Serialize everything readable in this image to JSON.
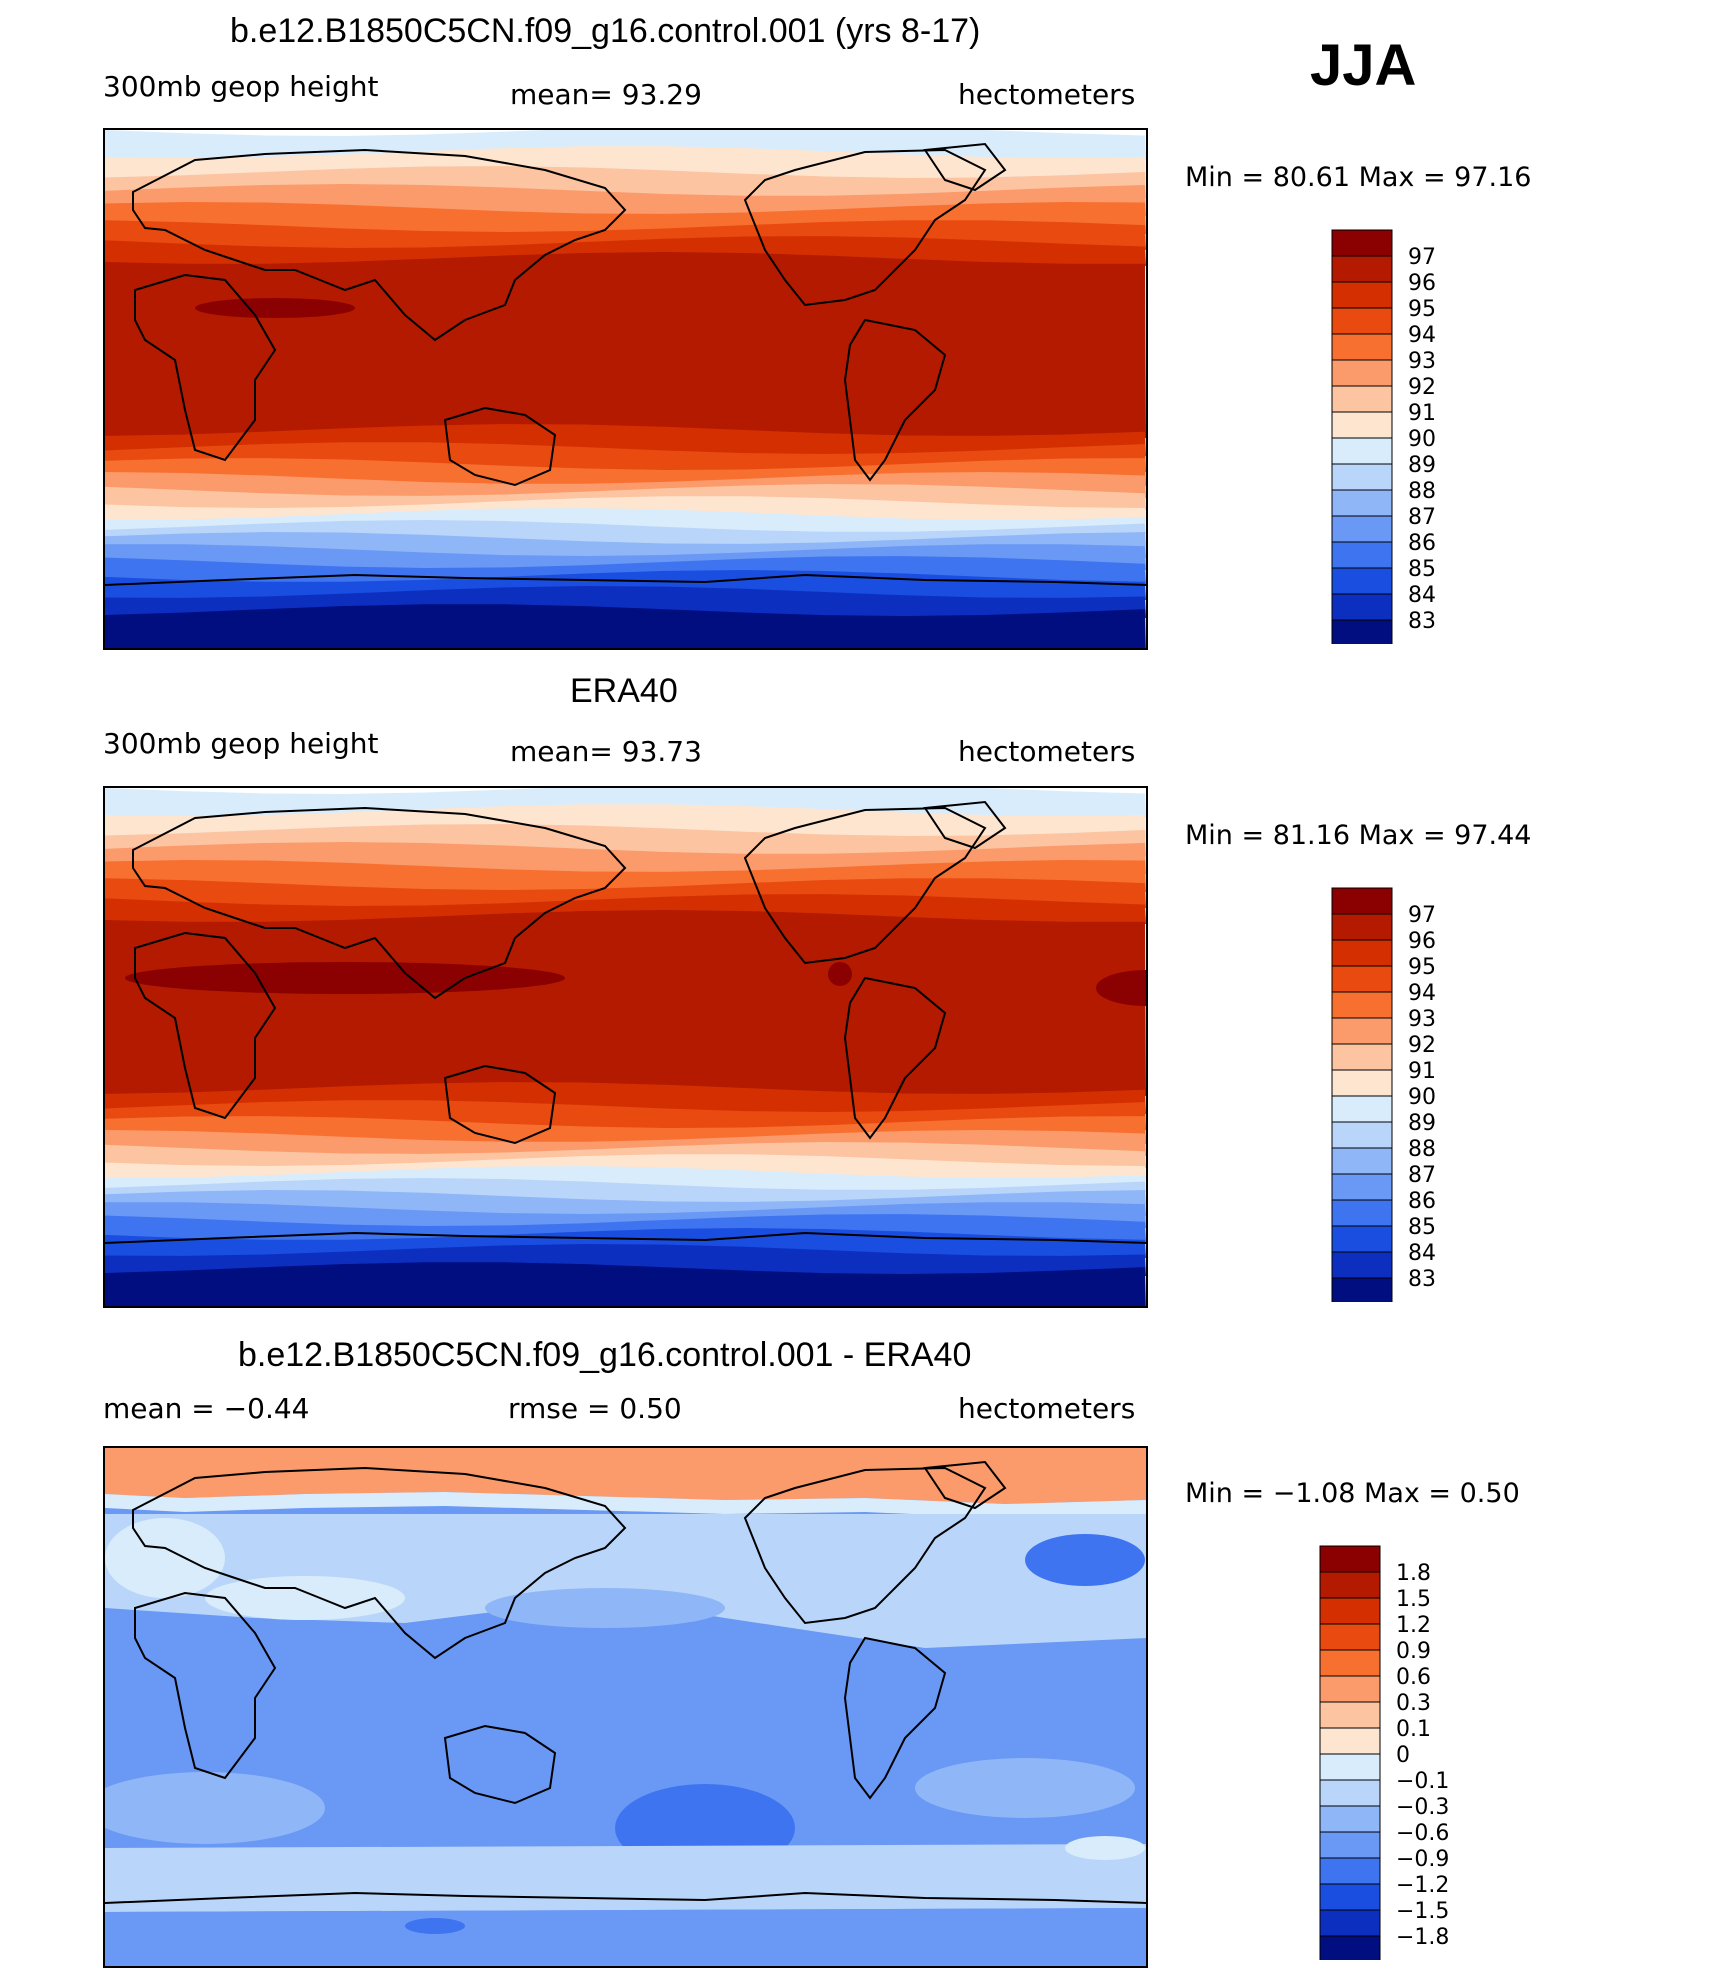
{
  "season": "JJA",
  "panels": [
    {
      "title": "b.e12.B1850C5CN.f09_g16.control.001 (yrs 8-17)",
      "left_label": "300mb geop height",
      "center_label": "mean=  93.29",
      "right_label": "hectometers",
      "minmax": "Min =   80.61 Max =   97.16"
    },
    {
      "title": "ERA40",
      "left_label": "300mb geop height",
      "center_label": "mean=  93.73",
      "right_label": "hectometers",
      "minmax": "Min =   81.16 Max =   97.44"
    },
    {
      "title": "b.e12.B1850C5CN.f09_g16.control.001 - ERA40",
      "left_label": "mean =   −0.44",
      "center_label": "rmse =    0.50",
      "right_label": "hectometers",
      "minmax": "Min =   −1.08 Max =    0.50"
    }
  ],
  "colorbars": {
    "height": {
      "labels": [
        "97",
        "96",
        "95",
        "94",
        "93",
        "92",
        "91",
        "90",
        "89",
        "88",
        "87",
        "86",
        "85",
        "84",
        "83"
      ],
      "colors": [
        "#8b0000",
        "#b31a00",
        "#d42f00",
        "#e84a10",
        "#f77030",
        "#fb9a6a",
        "#fcc4a0",
        "#fde5d0",
        "#d9ecfb",
        "#b9d6fa",
        "#8fb6f7",
        "#6a98f5",
        "#3f74f0",
        "#1a4ee0",
        "#0d2fc0",
        "#000e80"
      ]
    },
    "diff": {
      "labels": [
        "1.8",
        "1.5",
        "1.2",
        "0.9",
        "0.6",
        "0.3",
        "0.1",
        "0",
        "−0.1",
        "−0.3",
        "−0.6",
        "−0.9",
        "−1.2",
        "−1.5",
        "−1.8"
      ],
      "colors": [
        "#8b0000",
        "#b31a00",
        "#d42f00",
        "#e84a10",
        "#f77030",
        "#fb9a6a",
        "#fcc4a0",
        "#fde5d0",
        "#d9ecfb",
        "#b9d6fa",
        "#8fb6f7",
        "#6a98f5",
        "#3f74f0",
        "#1a4ee0",
        "#0d2fc0",
        "#000e80"
      ]
    }
  },
  "chart_data": [
    {
      "type": "heatmap",
      "title": "b.e12.B1850C5CN.f09_g16.control.001 (yrs 8-17)",
      "variable": "300mb geop height",
      "units": "hectometers",
      "mean": 93.29,
      "min": 80.61,
      "max": 97.16,
      "contour_levels": [
        83,
        84,
        85,
        86,
        87,
        88,
        89,
        90,
        91,
        92,
        93,
        94,
        95,
        96,
        97
      ],
      "zonal_profile": [
        {
          "lat": 90,
          "value": 89.5
        },
        {
          "lat": 75,
          "value": 91.0
        },
        {
          "lat": 60,
          "value": 92.5
        },
        {
          "lat": 45,
          "value": 94.5
        },
        {
          "lat": 30,
          "value": 96.0
        },
        {
          "lat": 15,
          "value": 96.5
        },
        {
          "lat": 0,
          "value": 96.5
        },
        {
          "lat": -15,
          "value": 96.3
        },
        {
          "lat": -25,
          "value": 94.5
        },
        {
          "lat": -35,
          "value": 91.5
        },
        {
          "lat": -45,
          "value": 88.0
        },
        {
          "lat": -55,
          "value": 85.5
        },
        {
          "lat": -65,
          "value": 83.5
        },
        {
          "lat": -75,
          "value": 82.0
        },
        {
          "lat": -90,
          "value": 81.0
        }
      ]
    },
    {
      "type": "heatmap",
      "title": "ERA40",
      "variable": "300mb geop height",
      "units": "hectometers",
      "mean": 93.73,
      "min": 81.16,
      "max": 97.44,
      "contour_levels": [
        83,
        84,
        85,
        86,
        87,
        88,
        89,
        90,
        91,
        92,
        93,
        94,
        95,
        96,
        97
      ],
      "zonal_profile": [
        {
          "lat": 90,
          "value": 89.5
        },
        {
          "lat": 75,
          "value": 91.0
        },
        {
          "lat": 60,
          "value": 93.0
        },
        {
          "lat": 45,
          "value": 95.0
        },
        {
          "lat": 30,
          "value": 96.8
        },
        {
          "lat": 15,
          "value": 96.5
        },
        {
          "lat": 0,
          "value": 96.5
        },
        {
          "lat": -15,
          "value": 96.3
        },
        {
          "lat": -25,
          "value": 94.5
        },
        {
          "lat": -35,
          "value": 91.5
        },
        {
          "lat": -45,
          "value": 88.0
        },
        {
          "lat": -55,
          "value": 85.5
        },
        {
          "lat": -65,
          "value": 83.5
        },
        {
          "lat": -75,
          "value": 82.0
        },
        {
          "lat": -90,
          "value": 81.5
        }
      ]
    },
    {
      "type": "heatmap",
      "title": "b.e12.B1850C5CN.f09_g16.control.001 - ERA40",
      "units": "hectometers",
      "mean": -0.44,
      "rmse": 0.5,
      "min": -1.08,
      "max": 0.5,
      "contour_levels": [
        -1.8,
        -1.5,
        -1.2,
        -0.9,
        -0.6,
        -0.3,
        -0.1,
        0,
        0.1,
        0.3,
        0.6,
        0.9,
        1.2,
        1.5,
        1.8
      ],
      "zonal_profile": [
        {
          "lat": 90,
          "value": 0.3
        },
        {
          "lat": 75,
          "value": 0.2
        },
        {
          "lat": 60,
          "value": -0.2
        },
        {
          "lat": 45,
          "value": -0.3
        },
        {
          "lat": 30,
          "value": -0.4
        },
        {
          "lat": 15,
          "value": -0.5
        },
        {
          "lat": 0,
          "value": -0.5
        },
        {
          "lat": -15,
          "value": -0.5
        },
        {
          "lat": -30,
          "value": -0.6
        },
        {
          "lat": -45,
          "value": -0.5
        },
        {
          "lat": -60,
          "value": -0.5
        },
        {
          "lat": -75,
          "value": -0.4
        },
        {
          "lat": -90,
          "value": -0.3
        }
      ]
    }
  ]
}
